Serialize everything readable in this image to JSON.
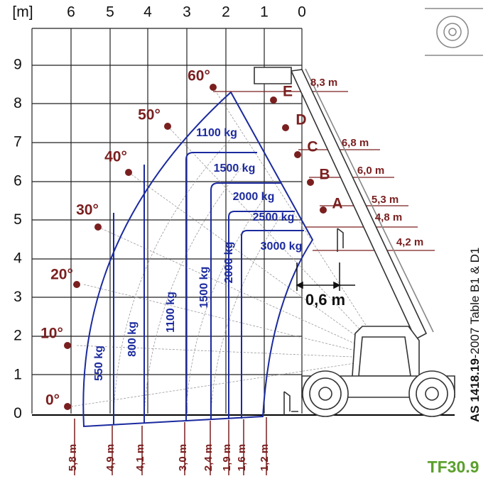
{
  "axis_unit": "[m]",
  "x_labels": [
    "6",
    "5",
    "4",
    "3",
    "2",
    "1",
    "0"
  ],
  "y_labels": [
    "9",
    "8",
    "7",
    "6",
    "5",
    "4",
    "3",
    "2",
    "1",
    "0"
  ],
  "angles": [
    "60°",
    "50°",
    "40°",
    "30°",
    "20°",
    "10°",
    "0°"
  ],
  "boom_points": [
    "E",
    "D",
    "C",
    "B",
    "A"
  ],
  "heights": [
    "8,3 m",
    "6,8 m",
    "6,0 m",
    "5,3 m",
    "4,8 m",
    "4,2 m"
  ],
  "loads_horizontal": [
    "1100 kg",
    "1500 kg",
    "2000 kg",
    "2500 kg",
    "3000 kg"
  ],
  "loads_vertical": [
    "550 kg",
    "800 kg",
    "1100 kg",
    "1500 kg",
    "2000 kg"
  ],
  "distances": [
    "5,8 m",
    "4,9 m",
    "4,1 m",
    "3,0 m",
    "2,4 m",
    "1,9 m",
    "1,6 m",
    "1,2 m"
  ],
  "offset": "0,6 m",
  "standard": {
    "code": "AS 1418.19",
    "rest": "-2007  Table B1 & D1"
  },
  "model": "TF30.9"
}
